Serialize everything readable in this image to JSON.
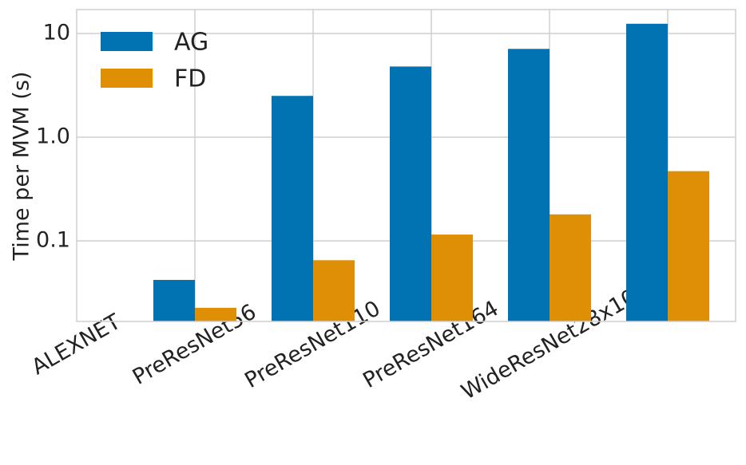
{
  "chart_data": {
    "type": "bar",
    "y_label": "Time per MVM (s)",
    "categories": [
      "ALEXNET",
      "PreResNet56",
      "PreResNet110",
      "PreResNet164",
      "WideResNet28x10",
      null
    ],
    "series": [
      {
        "name": "AG",
        "color": "#0173b2",
        "values": [
          null,
          0.042,
          2.5,
          4.8,
          7.1,
          12.4
        ]
      },
      {
        "name": "FD",
        "color": "#de8f05",
        "values": [
          null,
          0.0226,
          0.065,
          0.115,
          0.18,
          0.47
        ]
      }
    ],
    "ylim": [
      0.0167,
      17
    ],
    "y_log": true,
    "yticks": [
      10,
      {
        "value": 1,
        "label": "1.0"
      },
      0.1
    ],
    "grid": true,
    "legend": "upper left"
  }
}
